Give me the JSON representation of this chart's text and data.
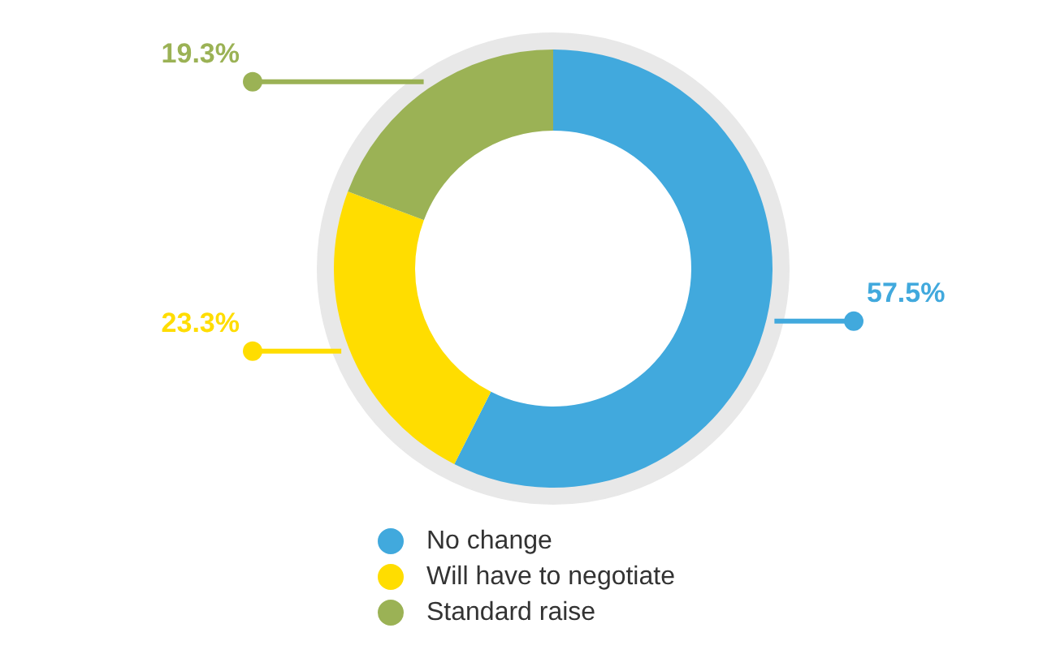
{
  "chart_data": {
    "type": "donut",
    "categories": [
      "No change",
      "Will have to negotiate",
      "Standard raise"
    ],
    "values": [
      57.5,
      23.3,
      19.3
    ],
    "value_labels": [
      "57.5%",
      "23.3%",
      "19.3%"
    ],
    "colors": [
      "#41a9dd",
      "#ffdd00",
      "#9bb255"
    ],
    "legend": "bottom"
  }
}
